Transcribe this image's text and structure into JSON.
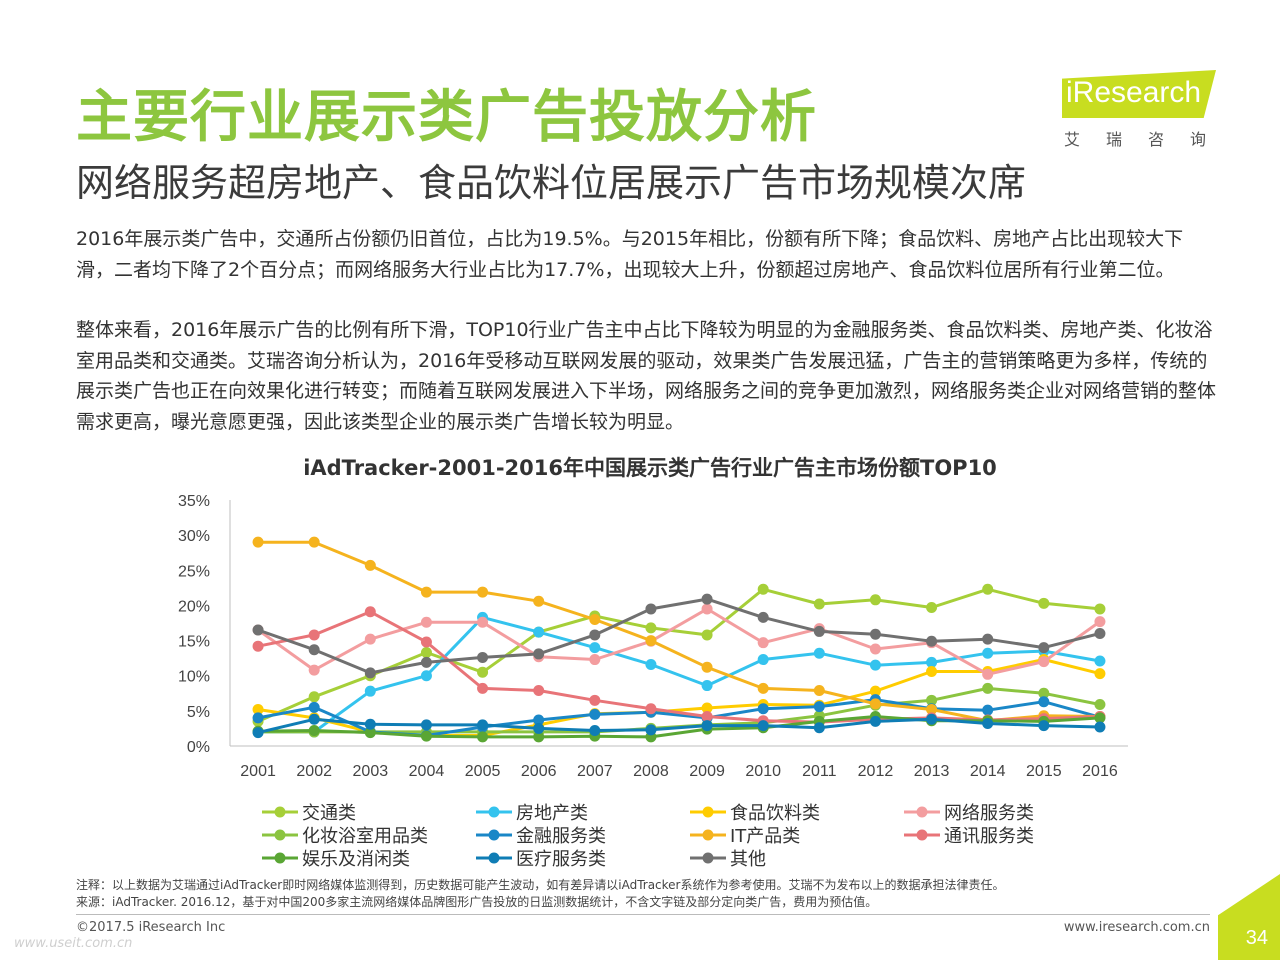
{
  "header": {
    "title": "主要行业展示类广告投放分析",
    "subtitle": "网络服务超房地产、食品饮料位居展示广告市场规模次席"
  },
  "logo": {
    "brand": "iResearch",
    "chinese": "艾瑞咨询",
    "color": "#c8dd20"
  },
  "body": {
    "paragraph1": "2016年展示类广告中，交通所占份额仍旧首位，占比为19.5%。与2015年相比，份额有所下降；食品饮料、房地产占比出现较大下滑，二者均下降了2个百分点；而网络服务大行业占比为17.7%，出现较大上升，份额超过房地产、食品饮料位居所有行业第二位。",
    "paragraph2": "整体来看，2016年展示广告的比例有所下滑，TOP10行业广告主中占比下降较为明显的为金融服务类、食品饮料类、房地产类、化妆浴室用品类和交通类。艾瑞咨询分析认为，2016年受移动互联网发展的驱动，效果类广告发展迅猛，广告主的营销策略更为多样，传统的展示类广告也正在向效果化进行转变；而随着互联网发展进入下半场，网络服务之间的竞争更加激烈，网络服务类企业对网络营销的整体需求更高，曝光意愿更强，因此该类型企业的展示类广告增长较为明显。"
  },
  "chart_data": {
    "type": "line",
    "title": "iAdTracker-2001-2016年中国展示类广告行业广告主市场份额TOP10",
    "xlabel": "",
    "ylabel": "",
    "ylim": [
      0,
      35
    ],
    "yticks": [
      "0%",
      "5%",
      "10%",
      "15%",
      "20%",
      "25%",
      "30%",
      "35%"
    ],
    "grid": false,
    "legend_position": "bottom",
    "x": [
      "2001",
      "2002",
      "2003",
      "2004",
      "2005",
      "2006",
      "2007",
      "2008",
      "2009",
      "2010",
      "2011",
      "2012",
      "2013",
      "2014",
      "2015",
      "2016"
    ],
    "series": [
      {
        "name": "交通类",
        "color": "#a6cf38",
        "values": [
          3.5,
          7.0,
          10.0,
          13.3,
          10.5,
          16.2,
          18.5,
          16.8,
          15.8,
          22.3,
          20.2,
          20.8,
          19.7,
          22.3,
          20.3,
          19.5
        ]
      },
      {
        "name": "房地产类",
        "color": "#34c3ee",
        "values": [
          2.0,
          2.0,
          7.8,
          10.0,
          18.3,
          16.2,
          14.0,
          11.6,
          8.6,
          12.3,
          13.2,
          11.5,
          11.9,
          13.2,
          13.5,
          12.1
        ]
      },
      {
        "name": "食品饮料类",
        "color": "#ffcc00",
        "values": [
          5.2,
          4.0,
          2.0,
          1.5,
          1.5,
          3.0,
          4.6,
          4.8,
          5.4,
          5.9,
          5.8,
          7.8,
          10.6,
          10.6,
          12.3,
          10.3
        ]
      },
      {
        "name": "网络服务类",
        "color": "#f39d9f",
        "values": [
          16.5,
          10.8,
          15.2,
          17.6,
          17.6,
          12.7,
          12.3,
          14.9,
          19.5,
          14.7,
          16.7,
          13.8,
          14.7,
          10.2,
          12.0,
          17.7
        ]
      },
      {
        "name": "化妆浴室用品类",
        "color": "#8bc440",
        "values": [
          2.0,
          2.0,
          2.0,
          2.0,
          2.0,
          2.0,
          2.0,
          2.5,
          3.0,
          3.3,
          4.3,
          5.8,
          6.5,
          8.2,
          7.5,
          5.9
        ]
      },
      {
        "name": "金融服务类",
        "color": "#1a87c7",
        "values": [
          4.0,
          5.5,
          2.0,
          1.5,
          2.7,
          3.7,
          4.5,
          4.8,
          4.0,
          5.3,
          5.6,
          6.6,
          5.3,
          5.1,
          6.3,
          4.1
        ]
      },
      {
        "name": "IT产品类",
        "color": "#f5b31e",
        "values": [
          29.0,
          29.0,
          25.7,
          21.9,
          21.9,
          20.6,
          18.0,
          15.0,
          11.2,
          8.2,
          7.9,
          6.0,
          5.2,
          3.6,
          4.3,
          4.2
        ]
      },
      {
        "name": "通讯服务类",
        "color": "#e87478",
        "values": [
          14.2,
          15.8,
          19.1,
          14.8,
          8.2,
          7.9,
          6.5,
          5.3,
          4.2,
          3.6,
          3.4,
          3.8,
          4.0,
          3.7,
          3.9,
          4.2
        ]
      },
      {
        "name": "娱乐及消闲类",
        "color": "#5aa634",
        "values": [
          2.1,
          2.2,
          1.9,
          1.4,
          1.3,
          1.3,
          1.4,
          1.3,
          2.4,
          2.6,
          3.5,
          4.2,
          3.6,
          3.6,
          3.5,
          4.0
        ]
      },
      {
        "name": "医疗服务类",
        "color": "#0f7db5",
        "values": [
          1.9,
          3.8,
          3.1,
          3.0,
          3.0,
          2.5,
          2.2,
          2.3,
          2.9,
          2.9,
          2.6,
          3.5,
          3.8,
          3.2,
          2.9,
          2.7
        ]
      },
      {
        "name": "其他",
        "color": "#707070",
        "values": [
          16.5,
          13.7,
          10.4,
          11.9,
          12.6,
          13.1,
          15.8,
          19.5,
          20.9,
          18.3,
          16.3,
          15.9,
          14.9,
          15.2,
          14.0,
          16.0
        ]
      }
    ]
  },
  "notes": {
    "note1": "注释：以上数据为艾瑞通过iAdTracker即时网络媒体监测得到，历史数据可能产生波动，如有差异请以iAdTracker系统作为参考使用。艾瑞不为发布以上的数据承担法律责任。",
    "note2": "来源：iAdTracker. 2016.12，基于对中国200多家主流网络媒体品牌图形广告投放的日监测数据统计，不含文字链及部分定向类广告，费用为预估值。"
  },
  "footer": {
    "copyright": "©2017.5 iResearch Inc",
    "website": "www.iresearch.com.cn",
    "page_number": "34",
    "watermark": "www.useit.com.cn",
    "accent_color": "#c8dd20"
  }
}
